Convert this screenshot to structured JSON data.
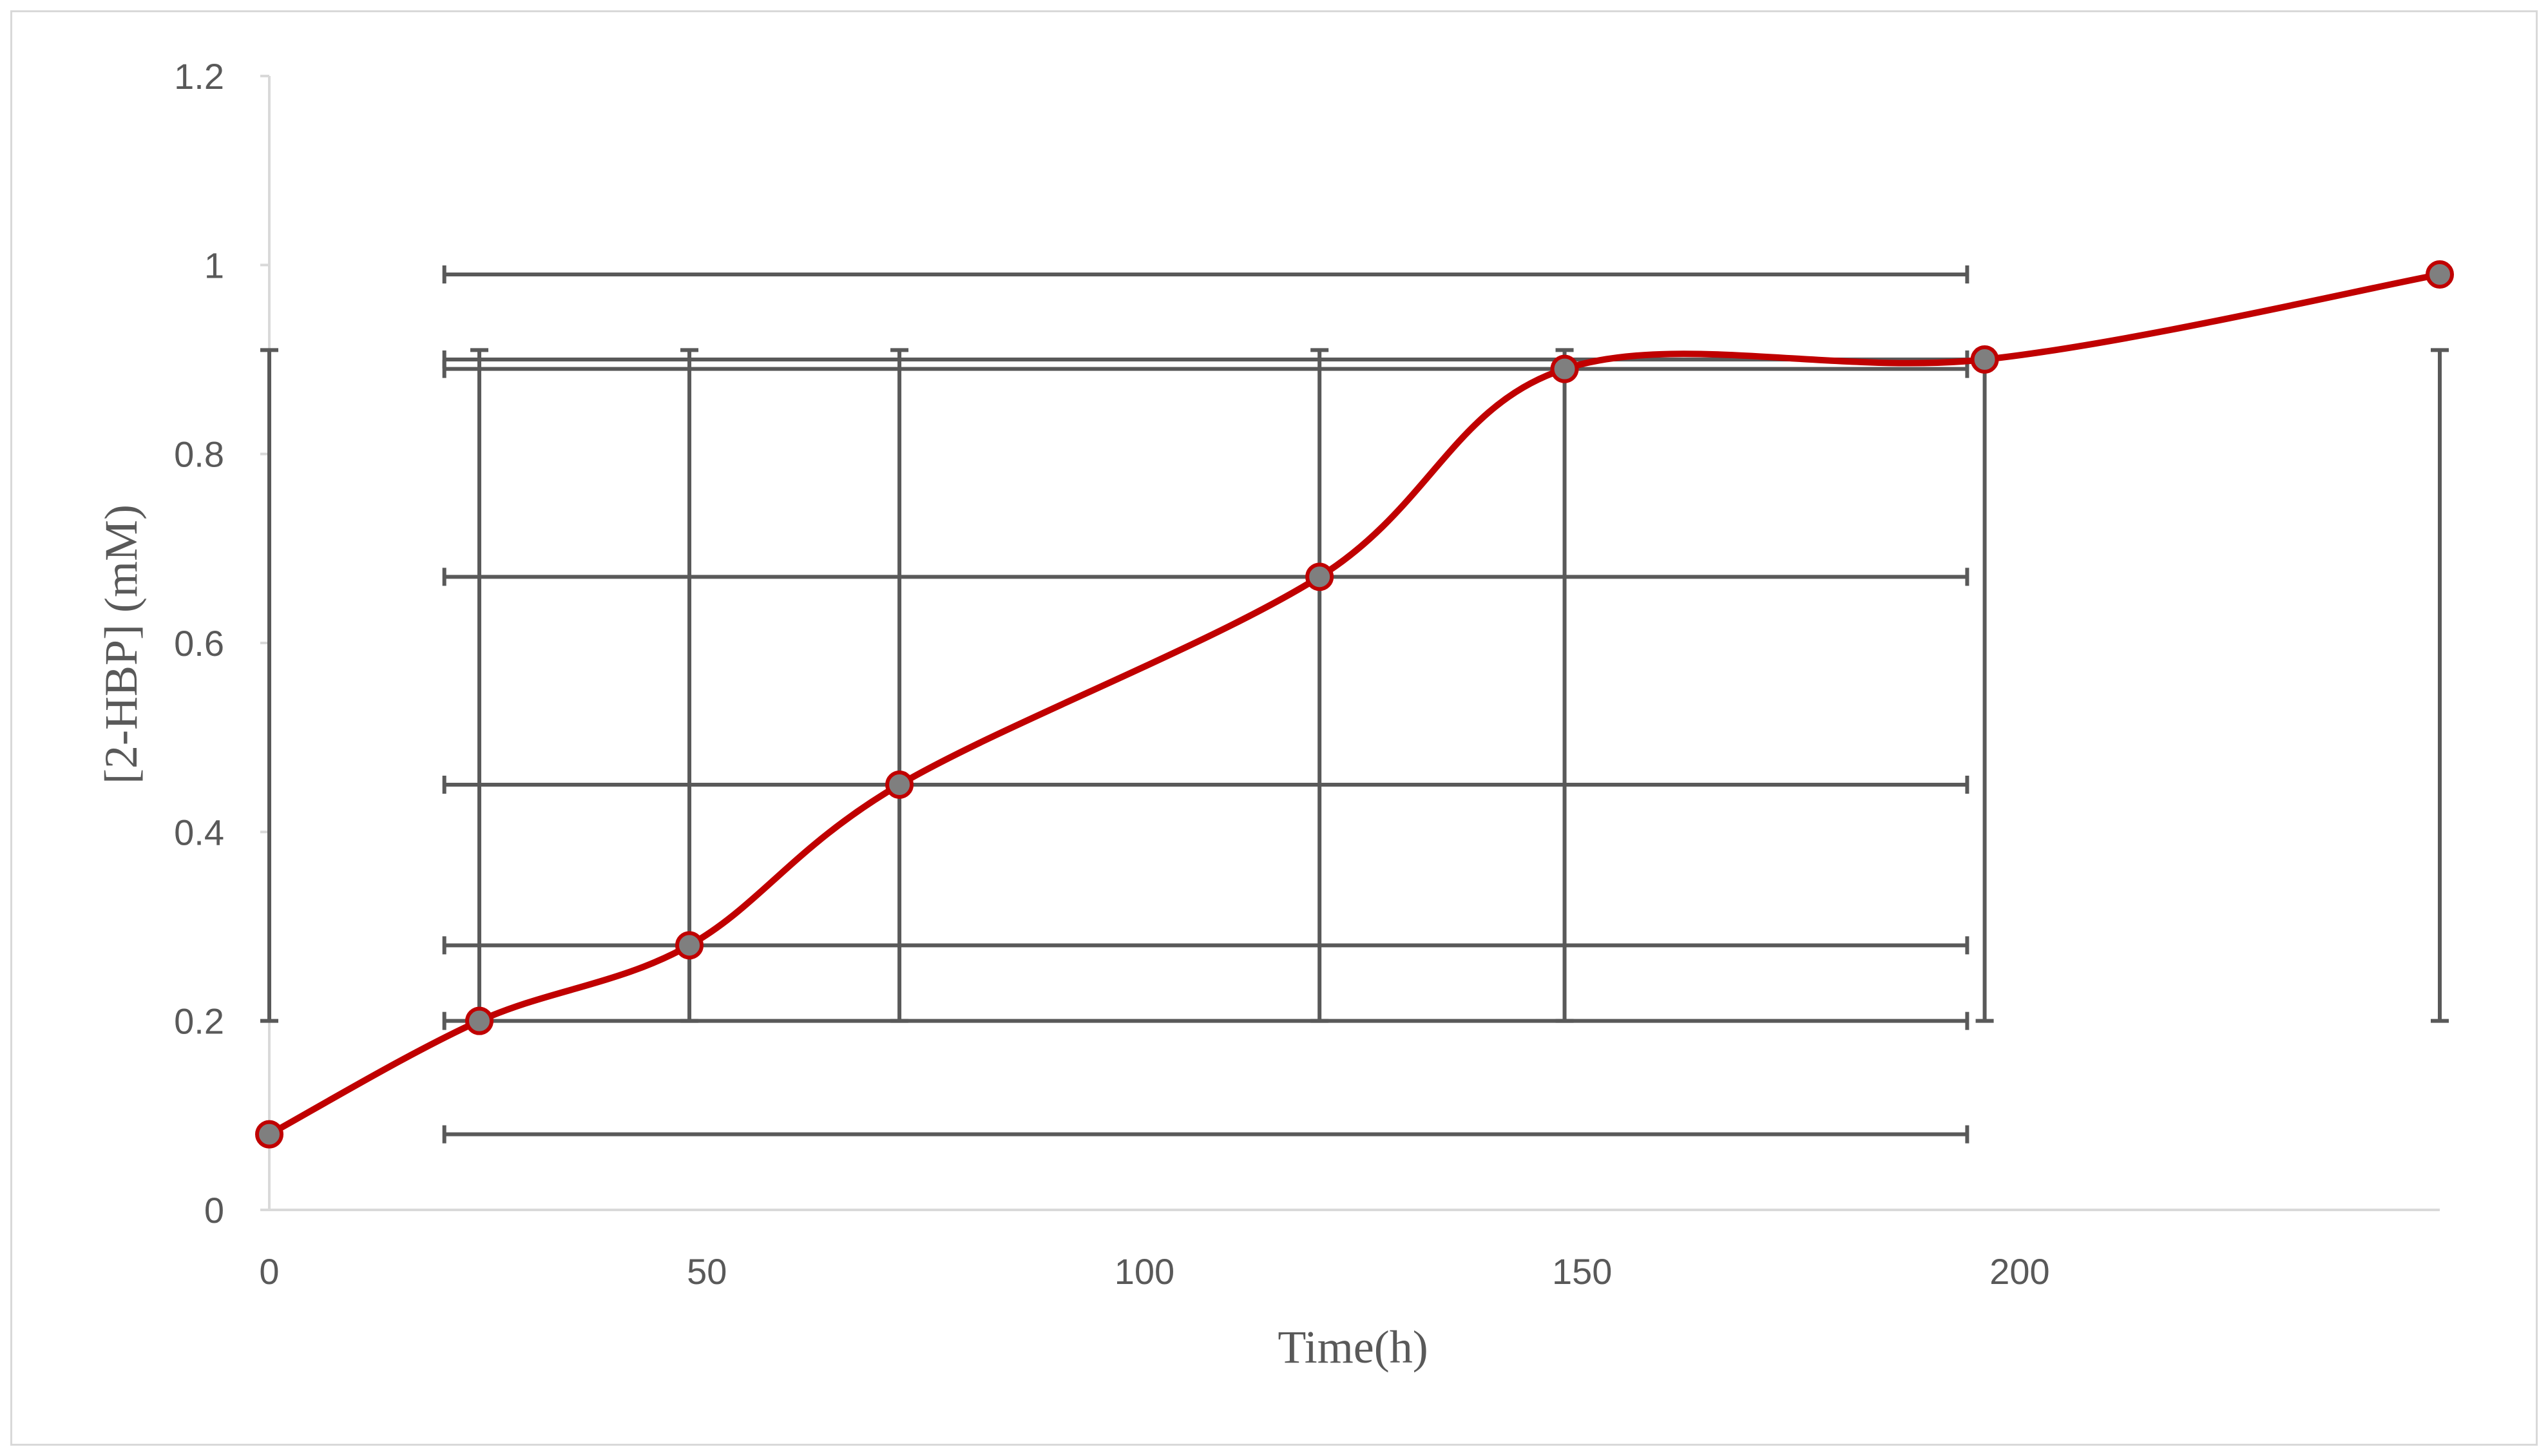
{
  "chart_data": {
    "type": "line",
    "xlabel": "Time(h)",
    "ylabel": "[2-HBP] (mM)",
    "xlim": [
      0,
      248
    ],
    "ylim": [
      0,
      1.2
    ],
    "x_ticks": [
      0,
      50,
      100,
      150,
      200
    ],
    "y_ticks": [
      0,
      0.2,
      0.4,
      0.6,
      0.8,
      1,
      1.2
    ],
    "x_tick_labels": [
      "0",
      "50",
      "100",
      "150",
      "200"
    ],
    "y_tick_labels": [
      "0",
      "0.2",
      "0.4",
      "0.6",
      "0.8",
      "1",
      "1.2"
    ],
    "grid": false,
    "legend": "none",
    "smooth": true,
    "series": [
      {
        "x": [
          0,
          24,
          48,
          72,
          120,
          148,
          196,
          248
        ],
        "y": [
          0.08,
          0.2,
          0.28,
          0.45,
          0.67,
          0.89,
          0.9,
          0.99
        ]
      }
    ],
    "error_bars": {
      "vertical": [
        {
          "x": 0,
          "low": 0.2,
          "high": 0.91
        },
        {
          "x": 24,
          "low": 0.2,
          "high": 0.91
        },
        {
          "x": 48,
          "low": 0.2,
          "high": 0.91
        },
        {
          "x": 72,
          "low": 0.2,
          "high": 0.91
        },
        {
          "x": 120,
          "low": 0.2,
          "high": 0.91
        },
        {
          "x": 148,
          "low": 0.2,
          "high": 0.91
        },
        {
          "x": 196,
          "low": 0.2,
          "high": 0.91
        },
        {
          "x": 248,
          "low": 0.2,
          "high": 0.91
        }
      ],
      "horizontal": [
        {
          "y": 0.08,
          "low": 20,
          "high": 194
        },
        {
          "y": 0.2,
          "low": 20,
          "high": 194
        },
        {
          "y": 0.28,
          "low": 20,
          "high": 194
        },
        {
          "y": 0.45,
          "low": 20,
          "high": 194
        },
        {
          "y": 0.67,
          "low": 20,
          "high": 194
        },
        {
          "y": 0.89,
          "low": 20,
          "high": 194
        },
        {
          "y": 0.9,
          "low": 20,
          "high": 194
        },
        {
          "y": 0.99,
          "low": 20,
          "high": 194
        }
      ]
    },
    "colors": {
      "line": "#c00000",
      "marker_fill": "#7f7f7f",
      "marker_edge": "#c00000",
      "error_bar": "#595959",
      "axis": "#d9d9d9",
      "text": "#595959"
    }
  }
}
